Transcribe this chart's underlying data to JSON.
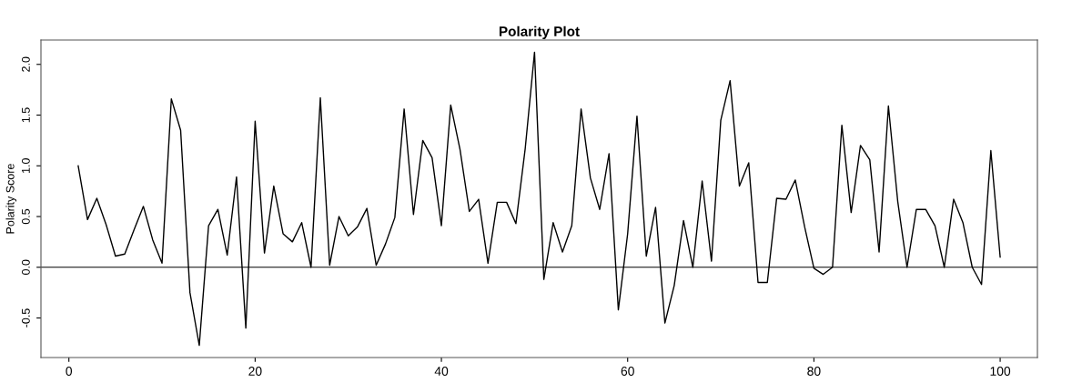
{
  "chart_data": {
    "type": "line",
    "title": "Polarity Plot",
    "ylabel": "Polarity Score",
    "x": [
      1,
      2,
      3,
      4,
      5,
      6,
      7,
      8,
      9,
      10,
      11,
      12,
      13,
      14,
      15,
      16,
      17,
      18,
      19,
      20,
      21,
      22,
      23,
      24,
      25,
      26,
      27,
      28,
      29,
      30,
      31,
      32,
      33,
      34,
      35,
      36,
      37,
      38,
      39,
      40,
      41,
      42,
      43,
      44,
      45,
      46,
      47,
      48,
      49,
      50,
      51,
      52,
      53,
      54,
      55,
      56,
      57,
      58,
      59,
      60,
      61,
      62,
      63,
      64,
      65,
      66,
      67,
      68,
      69,
      70,
      71,
      72,
      73,
      74,
      75,
      76,
      77,
      78,
      79,
      80,
      81,
      82,
      83,
      84,
      85,
      86,
      87,
      88,
      89,
      90,
      91,
      92,
      93,
      94,
      95,
      96,
      97,
      98,
      99,
      100
    ],
    "series": [
      {
        "color": "#000000",
        "values": [
          1.0,
          0.47,
          0.68,
          0.42,
          0.11,
          0.13,
          0.37,
          0.6,
          0.27,
          0.04,
          1.66,
          1.35,
          -0.25,
          -0.77,
          0.41,
          0.57,
          0.12,
          0.89,
          -0.6,
          1.44,
          0.14,
          0.8,
          0.33,
          0.25,
          0.44,
          0.0,
          1.67,
          0.02,
          0.5,
          0.31,
          0.4,
          0.58,
          0.02,
          0.23,
          0.49,
          1.56,
          0.52,
          1.25,
          1.08,
          0.41,
          1.6,
          1.16,
          0.55,
          0.67,
          0.04,
          0.64,
          0.64,
          0.43,
          1.17,
          2.12,
          -0.12,
          0.44,
          0.15,
          0.41,
          1.56,
          0.88,
          0.57,
          1.12,
          -0.42,
          0.33,
          1.49,
          0.11,
          0.59,
          -0.55,
          -0.18,
          0.46,
          0.0,
          0.85,
          0.06,
          1.45,
          1.84,
          0.8,
          1.03,
          -0.15,
          -0.15,
          0.68,
          0.67,
          0.86,
          0.4,
          -0.01,
          -0.07,
          0.0,
          1.4,
          0.54,
          1.2,
          1.06,
          0.15,
          1.59,
          0.65,
          0.0,
          0.57,
          0.57,
          0.41,
          0.0,
          0.67,
          0.44,
          0.0,
          -0.17,
          1.15,
          0.1
        ]
      }
    ],
    "xlim": [
      -3,
      104
    ],
    "ylim": [
      -0.89,
      2.24
    ],
    "xticks": [
      0,
      20,
      40,
      60,
      80,
      100
    ],
    "yticks": [
      {
        "value": -0.5,
        "label": "-0.5"
      },
      {
        "value": 0,
        "label": "0.0"
      },
      {
        "value": 0.5,
        "label": "0.5"
      },
      {
        "value": 1.0,
        "label": "1.0"
      },
      {
        "value": 1.5,
        "label": "1.5"
      },
      {
        "value": 2.0,
        "label": "2.0"
      }
    ],
    "ref_lines": [
      {
        "axis": "y",
        "value": 0,
        "color": "#000000"
      }
    ],
    "marker": "none",
    "line_style": "solid"
  }
}
